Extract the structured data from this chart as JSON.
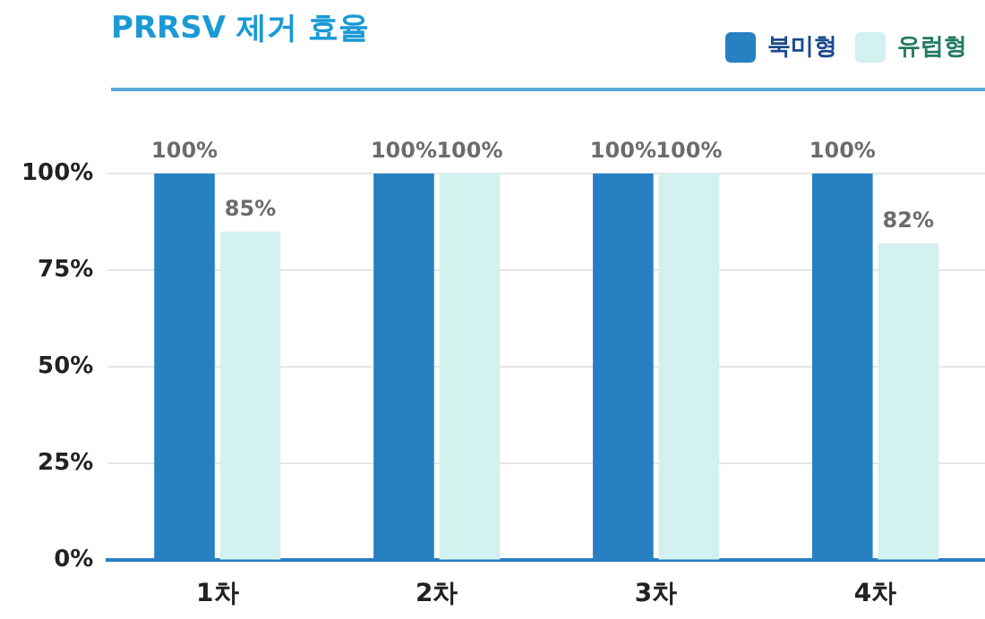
{
  "chart_data": {
    "type": "bar",
    "title": "PRRSV 제거 효율",
    "categories": [
      "1차",
      "2차",
      "3차",
      "4차"
    ],
    "series": [
      {
        "name": "북미형",
        "color": "#2680c2",
        "values": [
          100,
          100,
          100,
          100
        ],
        "value_labels": [
          "100%",
          "100%",
          "100%",
          "100%"
        ]
      },
      {
        "name": "유럽형",
        "color": "#d3f1ee",
        "values": [
          85,
          100,
          100,
          82
        ],
        "value_labels": [
          "85%",
          "100%",
          "100%",
          "82%"
        ]
      }
    ],
    "ylim": [
      0,
      100
    ],
    "yticks": [
      {
        "value": 0,
        "label": "0%"
      },
      {
        "value": 25,
        "label": "25%"
      },
      {
        "value": 50,
        "label": "50%"
      },
      {
        "value": 75,
        "label": "75%"
      },
      {
        "value": 100,
        "label": "100%"
      }
    ],
    "grid": "y",
    "legend": "top right"
  }
}
